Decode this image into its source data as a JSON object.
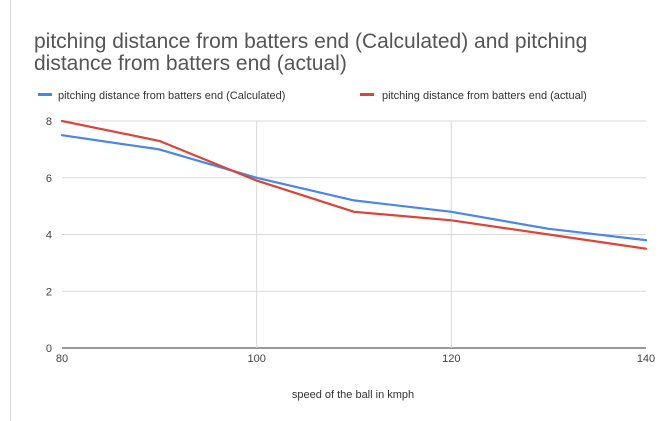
{
  "chart_data": {
    "type": "line",
    "title_line1": "pitching distance from batters end (Calculated) and pitching",
    "title_line2": "distance from batters end (actual)",
    "xlabel": "speed of the ball in kmph",
    "ylabel": "",
    "x": [
      80,
      90,
      100,
      110,
      120,
      130,
      140
    ],
    "xlim": [
      80,
      140
    ],
    "ylim": [
      0,
      8
    ],
    "x_ticks": [
      80,
      100,
      120,
      140
    ],
    "y_ticks": [
      0,
      2,
      4,
      6,
      8
    ],
    "grid": true,
    "legend_position": "top",
    "series": [
      {
        "name": "pitching distance from batters end (Calculated)",
        "color": "#4a86e8",
        "values": [
          7.5,
          7.0,
          6.0,
          5.2,
          4.8,
          4.2,
          3.8
        ]
      },
      {
        "name": "pitching distance from batters end (actual)",
        "color": "#db4437",
        "values": [
          8.0,
          7.3,
          5.9,
          4.8,
          4.5,
          4.0,
          3.5
        ]
      }
    ]
  }
}
